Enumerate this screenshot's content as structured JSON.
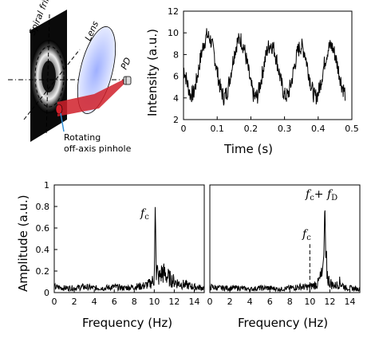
{
  "diagram": {
    "spiral_fringe_label": "Spiral fringe",
    "lens_label": "Lens",
    "pd_label": "PD",
    "pinhole_line1": "Rotating",
    "pinhole_line2": "off-axis pinhole"
  },
  "chart_data": [
    {
      "type": "line",
      "xlabel": "Time (s)",
      "ylabel": "Intensity (a.u.)",
      "xlim": [
        0,
        0.5
      ],
      "ylim": [
        2,
        12
      ],
      "xticks": [
        "0",
        "0.1",
        "0.2",
        "0.3",
        "0.4",
        "0.5"
      ],
      "yticks": [
        "2",
        "4",
        "6",
        "8",
        "10",
        "12"
      ],
      "series": [
        {
          "x": [
            0,
            0.01,
            0.02,
            0.03,
            0.04,
            0.05,
            0.06,
            0.07,
            0.08,
            0.09,
            0.1,
            0.11,
            0.12,
            0.13,
            0.14,
            0.15,
            0.16,
            0.17,
            0.18,
            0.19,
            0.2,
            0.21,
            0.22,
            0.23,
            0.24,
            0.25,
            0.26,
            0.27,
            0.28,
            0.29,
            0.3,
            0.31,
            0.32,
            0.33,
            0.34,
            0.35,
            0.36,
            0.37,
            0.38,
            0.39,
            0.4,
            0.41,
            0.42,
            0.43,
            0.44,
            0.45,
            0.46,
            0.47,
            0.48
          ],
          "y": [
            6.8,
            5.5,
            4.3,
            4.4,
            5.8,
            7.6,
            9.0,
            9.8,
            9.4,
            8.2,
            6.4,
            4.8,
            4.0,
            4.6,
            6.2,
            8.0,
            9.2,
            9.4,
            8.6,
            7.0,
            5.2,
            4.0,
            4.2,
            5.6,
            7.2,
            8.6,
            9.0,
            8.4,
            7.0,
            5.4,
            4.2,
            4.2,
            5.4,
            7.0,
            8.4,
            8.8,
            8.2,
            6.6,
            5.0,
            4.0,
            4.4,
            5.8,
            7.4,
            8.6,
            8.8,
            8.0,
            6.6,
            5.2,
            4.4
          ]
        }
      ]
    },
    {
      "type": "line",
      "xlabel": "Frequency (Hz)",
      "ylabel": "Amplitude (a.u.)",
      "xlim": [
        0,
        15
      ],
      "ylim": [
        0,
        1
      ],
      "xticks": [
        "0",
        "2",
        "4",
        "6",
        "8",
        "10",
        "12",
        "14"
      ],
      "yticks": [
        "0",
        "0.2",
        "0.4",
        "0.6",
        "0.8",
        "1"
      ],
      "annotations": [
        {
          "text": "f",
          "sub": "c",
          "x": 10.2,
          "y": 0.85
        }
      ],
      "series": [
        {
          "x": [
            0,
            1,
            2,
            3,
            4,
            5,
            6,
            7,
            8,
            9,
            9.6,
            10.0,
            10.1,
            10.2,
            10.3,
            10.4,
            10.8,
            11.2,
            11.6,
            12,
            12.5,
            13,
            14,
            15
          ],
          "y": [
            0.05,
            0.04,
            0.04,
            0.05,
            0.04,
            0.04,
            0.05,
            0.04,
            0.05,
            0.06,
            0.08,
            0.12,
            0.85,
            0.14,
            0.2,
            0.12,
            0.18,
            0.15,
            0.12,
            0.1,
            0.08,
            0.07,
            0.05,
            0.04
          ]
        }
      ]
    },
    {
      "type": "line",
      "xlabel": "Frequency (Hz)",
      "ylabel": "",
      "xlim": [
        0,
        15
      ],
      "ylim": [
        0,
        1
      ],
      "xticks": [
        "0",
        "2",
        "4",
        "6",
        "8",
        "10",
        "12",
        "14"
      ],
      "yticks": [],
      "annotations": [
        {
          "text": "f",
          "sub": "c",
          "x": 10.0,
          "y": 0.55
        },
        {
          "text": "f",
          "sub": "c",
          "text2": "+ f",
          "sub2": "D",
          "x": 11.5,
          "y": 0.87
        }
      ],
      "marker_line": {
        "x": 10.0,
        "y_from": 0.0,
        "y_to": 0.45
      },
      "series": [
        {
          "x": [
            0,
            1,
            2,
            3,
            4,
            5,
            6,
            7,
            8,
            9,
            10,
            10.8,
            11.2,
            11.4,
            11.5,
            11.6,
            11.8,
            12.2,
            12.6,
            13,
            13.6,
            14,
            15
          ],
          "y": [
            0.05,
            0.04,
            0.04,
            0.04,
            0.03,
            0.04,
            0.04,
            0.03,
            0.04,
            0.05,
            0.05,
            0.08,
            0.15,
            0.35,
            0.86,
            0.3,
            0.12,
            0.07,
            0.06,
            0.09,
            0.04,
            0.04,
            0.03
          ]
        }
      ]
    }
  ]
}
